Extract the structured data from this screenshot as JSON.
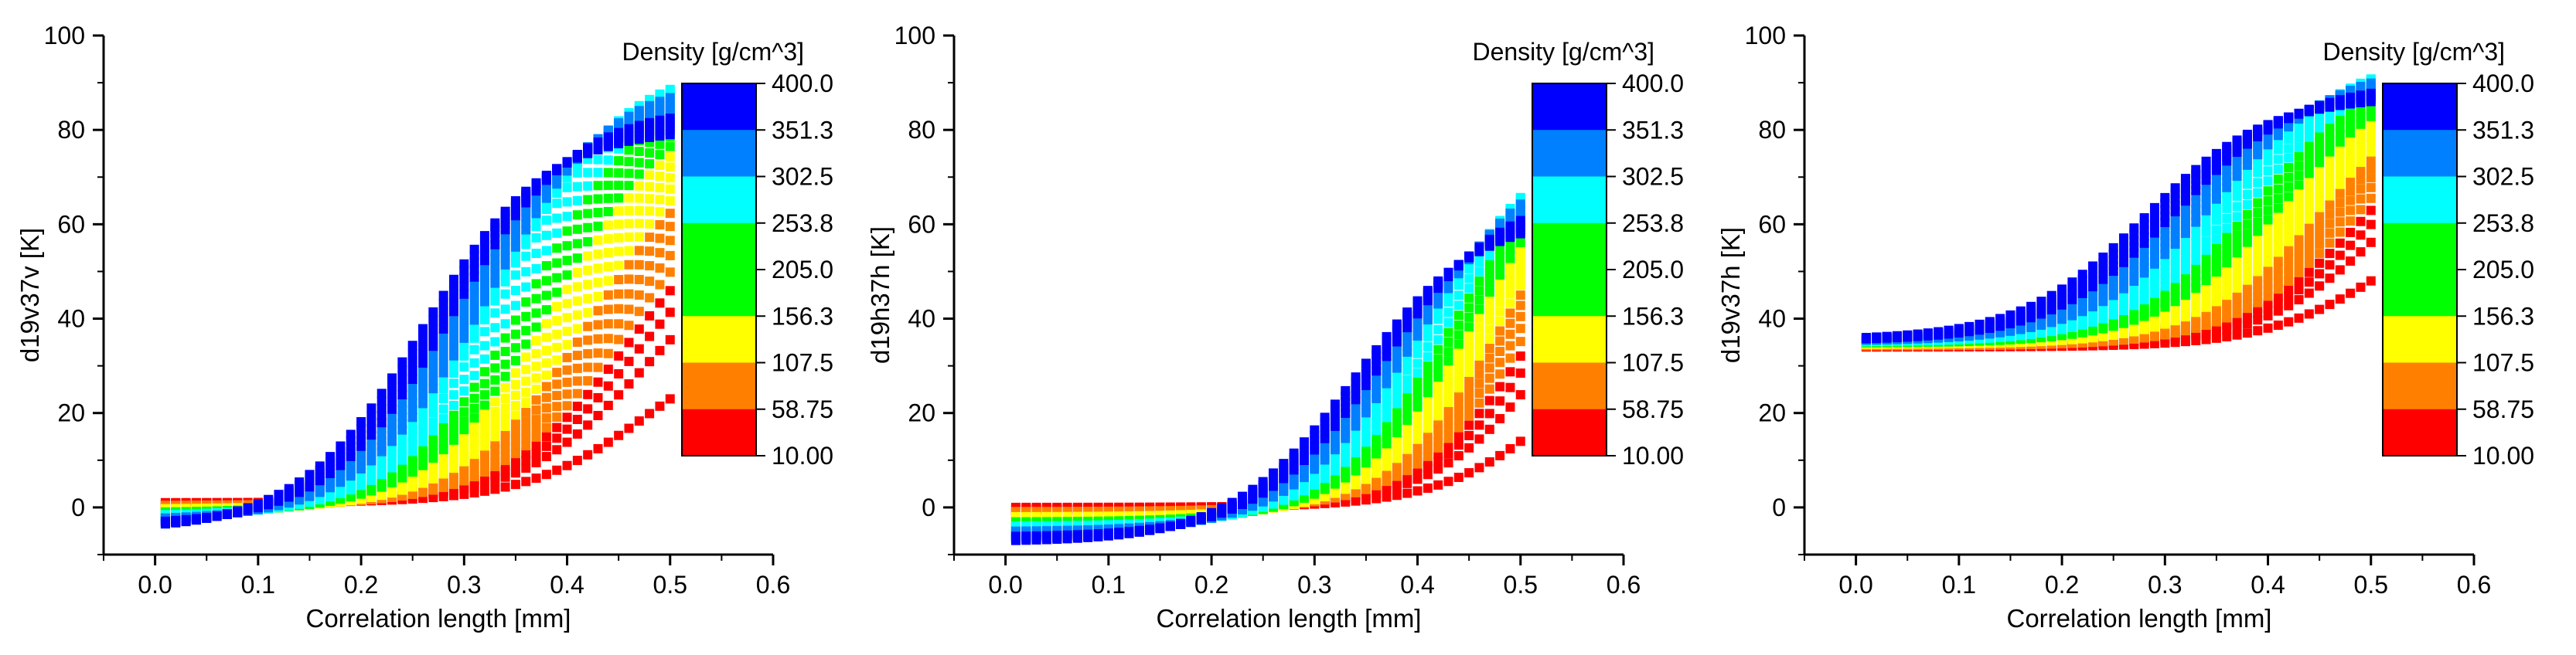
{
  "chart_data": [
    {
      "type": "line",
      "marker": "square",
      "ylabel": "d19v37v [K]",
      "xlabel": "Correlation length [mm]",
      "xlim": [
        -0.05,
        0.6
      ],
      "ylim": [
        -10,
        100
      ],
      "xticks": [
        "0.0",
        "0.1",
        "0.2",
        "0.3",
        "0.4",
        "0.5",
        "0.6"
      ],
      "yticks": [
        "0",
        "20",
        "40",
        "60",
        "80",
        "100"
      ],
      "colorbar_title": "Density [g/cm^3]",
      "colorbar_labels": [
        "400.0",
        "351.3",
        "302.5",
        "253.8",
        "205.0",
        "156.3",
        "107.5",
        "58.75",
        "10.00"
      ],
      "curve_family": {
        "x_start": 0.01,
        "x_end": 0.5,
        "x_step": 0.01,
        "density_min": 10,
        "density_max": 400,
        "curve_count": 33,
        "start_y_low_density": 1,
        "start_y_high_density": -3.5,
        "end_y_low_density": 23,
        "end_y_peak": 89,
        "peak_density": 260,
        "end_y_high_density": 79,
        "midpoint_x_low_density": 0.48,
        "midpoint_x_high_density": 0.26
      }
    },
    {
      "type": "line",
      "marker": "square",
      "ylabel": "d19h37h [K]",
      "xlabel": "Correlation length [mm]",
      "xlim": [
        -0.05,
        0.6
      ],
      "ylim": [
        -10,
        100
      ],
      "xticks": [
        "0.0",
        "0.1",
        "0.2",
        "0.3",
        "0.4",
        "0.5",
        "0.6"
      ],
      "yticks": [
        "0",
        "20",
        "40",
        "60",
        "80",
        "100"
      ],
      "colorbar_title": "Density [g/cm^3]",
      "colorbar_labels": [
        "400.0",
        "351.3",
        "302.5",
        "253.8",
        "205.0",
        "156.3",
        "107.5",
        "58.75",
        "10.00"
      ],
      "curve_family": {
        "x_start": 0.01,
        "x_end": 0.5,
        "x_step": 0.01,
        "density_min": 10,
        "density_max": 400,
        "curve_count": 33,
        "start_y_low_density": 0,
        "start_y_high_density": -7,
        "end_y_low_density": 14,
        "end_y_peak": 66,
        "peak_density": 260,
        "end_y_high_density": 58,
        "midpoint_x_low_density": 0.55,
        "midpoint_x_high_density": 0.34
      }
    },
    {
      "type": "line",
      "marker": "square",
      "ylabel": "d19v37h [K]",
      "xlabel": "Correlation length [mm]",
      "xlim": [
        -0.05,
        0.6
      ],
      "ylim": [
        -10,
        100
      ],
      "xticks": [
        "0.0",
        "0.1",
        "0.2",
        "0.3",
        "0.4",
        "0.5",
        "0.6"
      ],
      "yticks": [
        "0",
        "20",
        "40",
        "60",
        "80",
        "100"
      ],
      "colorbar_title": "Density [g/cm^3]",
      "colorbar_labels": [
        "400.0",
        "351.3",
        "302.5",
        "253.8",
        "205.0",
        "156.3",
        "107.5",
        "58.75",
        "10.00"
      ],
      "curve_family": {
        "x_start": 0.01,
        "x_end": 0.5,
        "x_step": 0.01,
        "density_min": 10,
        "density_max": 400,
        "curve_count": 33,
        "start_y_low_density": 34,
        "start_y_high_density": 36,
        "end_y_low_density": 48,
        "end_y_peak": 91,
        "peak_density": 260,
        "end_y_high_density": 86,
        "midpoint_x_low_density": 0.52,
        "midpoint_x_high_density": 0.28
      }
    }
  ],
  "colorbar_colors": [
    "#0000ff",
    "#0080ff",
    "#00ffff",
    "#00ff00",
    "#ffff00",
    "#ff8000",
    "#ff0000"
  ]
}
